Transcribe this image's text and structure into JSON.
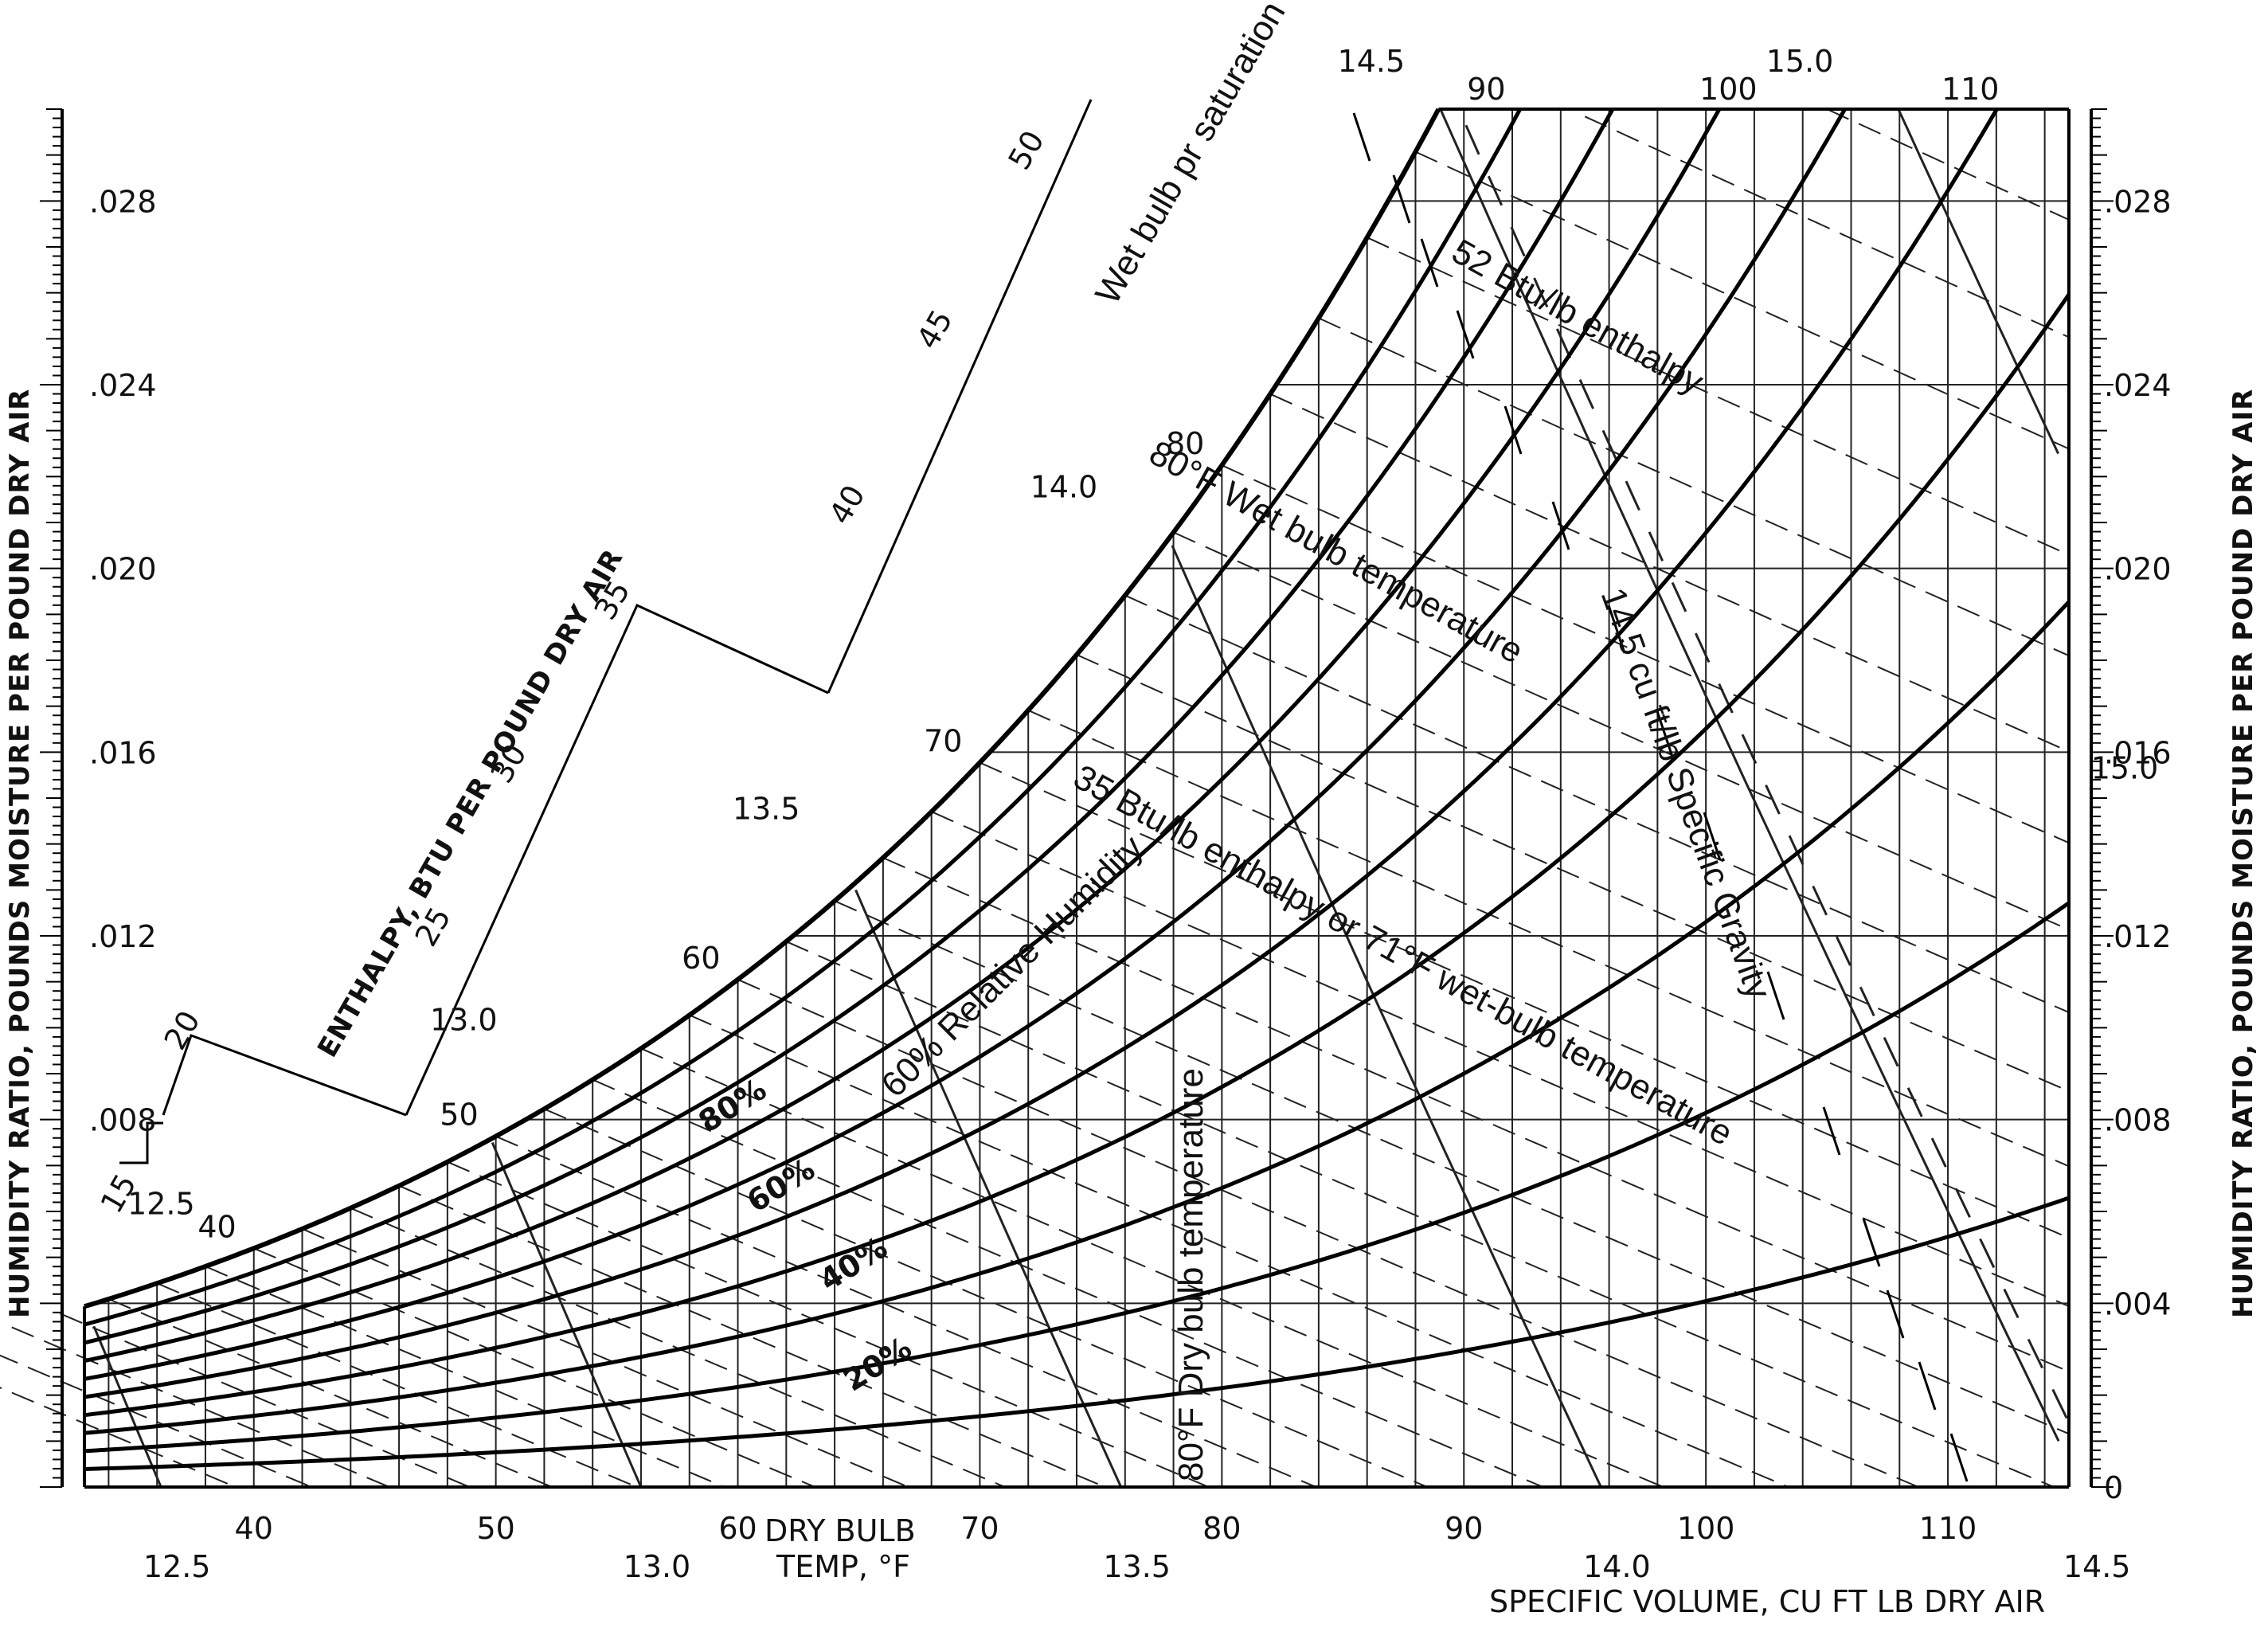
{
  "chart_data": {
    "type": "psychrometric",
    "x_axis": {
      "label_line1": "DRY BULB",
      "label_line2": "TEMP, °F",
      "range": [
        33,
        115
      ],
      "ticks": [
        "40",
        "50",
        "60",
        "70",
        "80",
        "90",
        "100",
        "110"
      ]
    },
    "y_axis": {
      "label": "HUMIDITY RATIO, POUNDS MOISTURE PER POUND DRY AIR",
      "range": [
        0,
        0.03
      ],
      "ticks_left": [
        ".008",
        ".012",
        ".016",
        ".020",
        ".024",
        ".028"
      ],
      "ticks_right": [
        "0",
        ".004",
        ".008",
        ".012",
        ".016",
        ".020",
        ".024",
        ".028"
      ]
    },
    "volume_axis": {
      "label": "SPECIFIC VOLUME, CU FT LB DRY AIR",
      "bottom_ticks": [
        "12.5",
        "13.0",
        "13.5",
        "14.0",
        "14.5"
      ],
      "inline_ticks": [
        "12.5",
        "13.0",
        "13.5",
        "14.0",
        "14.5",
        "15.0"
      ],
      "right_tick": "15.0"
    },
    "enthalpy_axis": {
      "label": "ENTHALPY, BTU PER POUND DRY AIR",
      "ticks": [
        "15",
        "20",
        "25",
        "30",
        "35",
        "40",
        "45",
        "50"
      ]
    },
    "relative_humidity": {
      "levels": [
        10,
        20,
        30,
        40,
        50,
        60,
        70,
        80,
        90,
        100
      ],
      "labels": [
        "20%",
        "40%",
        "60%",
        "80%"
      ]
    },
    "wet_bulb": {
      "values": [
        40,
        50,
        60,
        70,
        80,
        90,
        100,
        110
      ],
      "labels": [
        "40",
        "50",
        "60",
        "70",
        "80",
        "90",
        "100",
        "110"
      ]
    },
    "annotations": {
      "saturation": "Wet bulb pr saturation temp",
      "enthalpy52": "52 Btu/lb enthalpy",
      "wetbulb80": "80°F Wet bulb temperature",
      "specific": "14.5 cu ft/lb Specific Gravity",
      "enthalpy35": "35 Btu/lb enthalpy or 71°F wet-bulb temperature",
      "rh60": "60% Relative Humidity",
      "drybulb80": "80°F Dry bulb temperature"
    }
  }
}
